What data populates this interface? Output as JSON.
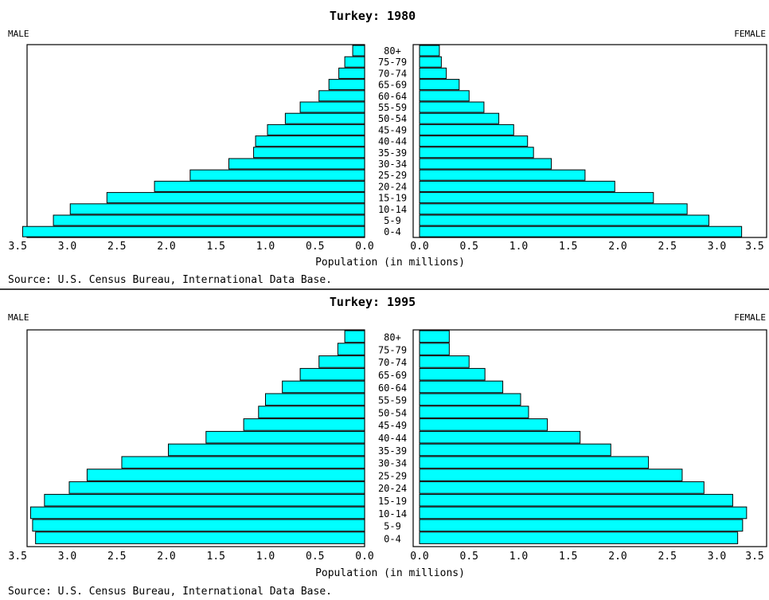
{
  "chart_data": [
    {
      "type": "bar",
      "orientation": "horizontal",
      "title": "Turkey: 1980",
      "left_label": "MALE",
      "right_label": "FEMALE",
      "xlabel": "Population (in millions)",
      "source": "Source: U.S. Census Bureau, International Data Base.",
      "xlim": [
        0,
        3.5
      ],
      "x_ticks": [
        "0.0",
        "0.5",
        "1.0",
        "1.5",
        "2.0",
        "2.5",
        "3.0",
        "3.5"
      ],
      "categories": [
        "80+",
        "75-79",
        "70-74",
        "65-69",
        "60-64",
        "55-59",
        "50-54",
        "45-49",
        "40-44",
        "35-39",
        "30-34",
        "25-29",
        "20-24",
        "15-19",
        "10-14",
        "5-9",
        "0-4"
      ],
      "series": [
        {
          "name": "MALE",
          "values": [
            0.12,
            0.2,
            0.26,
            0.36,
            0.46,
            0.65,
            0.8,
            0.98,
            1.1,
            1.12,
            1.37,
            1.76,
            2.12,
            2.6,
            2.97,
            3.14,
            3.45
          ]
        },
        {
          "name": "FEMALE",
          "values": [
            0.2,
            0.22,
            0.27,
            0.4,
            0.5,
            0.65,
            0.8,
            0.95,
            1.09,
            1.15,
            1.33,
            1.67,
            1.97,
            2.36,
            2.7,
            2.92,
            3.25
          ]
        }
      ]
    },
    {
      "type": "bar",
      "orientation": "horizontal",
      "title": "Turkey: 1995",
      "left_label": "MALE",
      "right_label": "FEMALE",
      "xlabel": "Population (in millions)",
      "source": "Source: U.S. Census Bureau, International Data Base.",
      "xlim": [
        0,
        3.5
      ],
      "x_ticks": [
        "0.0",
        "0.5",
        "1.0",
        "1.5",
        "2.0",
        "2.5",
        "3.0",
        "3.5"
      ],
      "categories": [
        "80+",
        "75-79",
        "70-74",
        "65-69",
        "60-64",
        "55-59",
        "50-54",
        "45-49",
        "40-44",
        "35-39",
        "30-34",
        "25-29",
        "20-24",
        "15-19",
        "10-14",
        "5-9",
        "0-4"
      ],
      "series": [
        {
          "name": "MALE",
          "values": [
            0.2,
            0.27,
            0.46,
            0.65,
            0.83,
            1.0,
            1.07,
            1.22,
            1.6,
            1.98,
            2.45,
            2.8,
            2.98,
            3.23,
            3.37,
            3.35,
            3.32
          ]
        },
        {
          "name": "FEMALE",
          "values": [
            0.3,
            0.3,
            0.5,
            0.66,
            0.84,
            1.02,
            1.1,
            1.29,
            1.62,
            1.93,
            2.31,
            2.65,
            2.87,
            3.16,
            3.3,
            3.26,
            3.21
          ]
        }
      ]
    }
  ]
}
